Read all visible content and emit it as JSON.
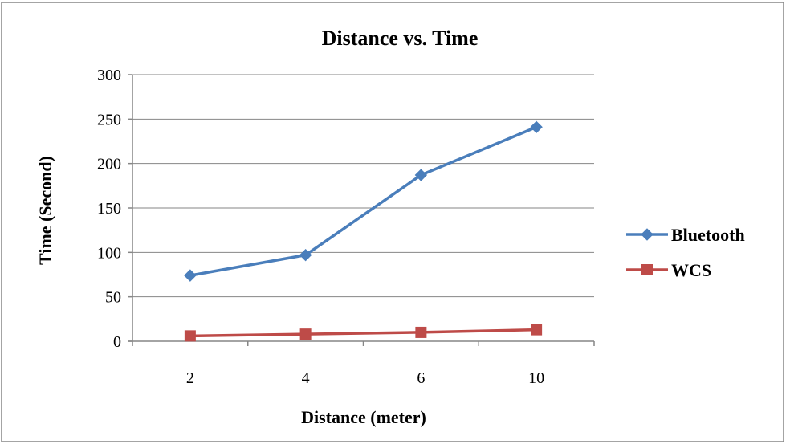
{
  "chart_data": {
    "type": "line",
    "title": "Distance vs. Time",
    "xlabel": "Distance (meter)",
    "ylabel": "Time (Second)",
    "categories": [
      "2",
      "4",
      "6",
      "10"
    ],
    "y_ticks": [
      "0",
      "50",
      "100",
      "150",
      "200",
      "250",
      "300"
    ],
    "ylim": [
      0,
      300
    ],
    "grid": "horizontal",
    "legend_position": "right",
    "series": [
      {
        "name": "Bluetooth",
        "values": [
          74,
          97,
          187,
          241
        ],
        "color": "#4a7ebb",
        "marker": "diamond"
      },
      {
        "name": "WCS",
        "values": [
          6,
          8,
          10,
          13
        ],
        "color": "#be4b48",
        "marker": "square"
      }
    ]
  }
}
